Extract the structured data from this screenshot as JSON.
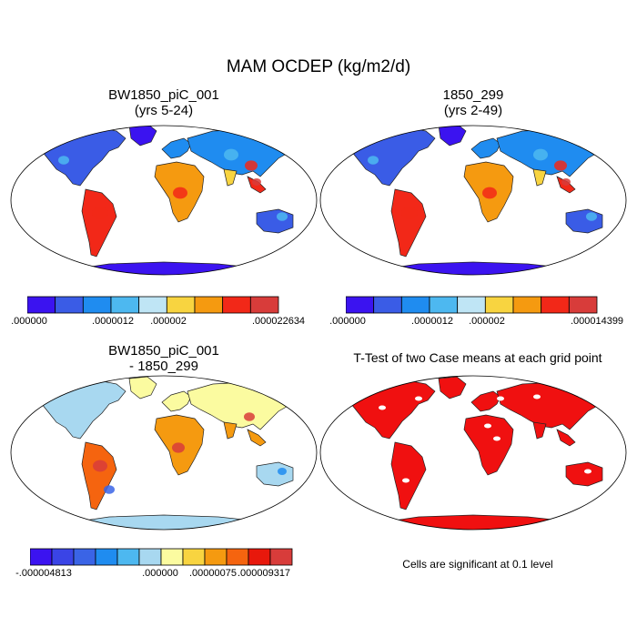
{
  "figure": {
    "title": "MAM OCDEP (kg/m2/d)"
  },
  "panels": [
    {
      "id": "panel-case1",
      "title_line1": "BW1850_piC_001",
      "title_line2": "(yrs 5-24)",
      "colorbar": {
        "colors": [
          "#3b13f0",
          "#3a5ce6",
          "#1f8cf0",
          "#4db8f0",
          "#bfe5f5",
          "#f8d440",
          "#f59a10",
          "#f22818",
          "#d83c3a"
        ],
        "tick_labels": [
          ".000000",
          ".0000012",
          ".000002",
          ".000022634"
        ]
      }
    },
    {
      "id": "panel-case2",
      "title_line1": "1850_299",
      "title_line2": "(yrs 2-49)",
      "colorbar": {
        "colors": [
          "#3b13f0",
          "#3a5ce6",
          "#1f8cf0",
          "#4db8f0",
          "#bfe5f5",
          "#f8d440",
          "#f59a10",
          "#f22818",
          "#d83c3a"
        ],
        "tick_labels": [
          ".000000",
          ".0000012",
          ".000002",
          ".000014399"
        ]
      }
    },
    {
      "id": "panel-diff",
      "title_line1": "BW1850_piC_001",
      "title_line2": "- 1850_299",
      "colorbar": {
        "colors": [
          "#3b13f0",
          "#3a44e6",
          "#3a64e6",
          "#1f8cf0",
          "#4db8f0",
          "#a8d8f0",
          "#fbfba0",
          "#f8d440",
          "#f59a10",
          "#f5640f",
          "#e8180c",
          "#d83c3a"
        ],
        "tick_labels": [
          "-.000004813",
          ".000000",
          ".00000075",
          ".000009317"
        ]
      }
    },
    {
      "id": "panel-ttest",
      "title_line1": "T-Test of two Case means at each grid point",
      "note": "Cells are significant at 0.1 level",
      "significant_color": "#f01010"
    }
  ]
}
